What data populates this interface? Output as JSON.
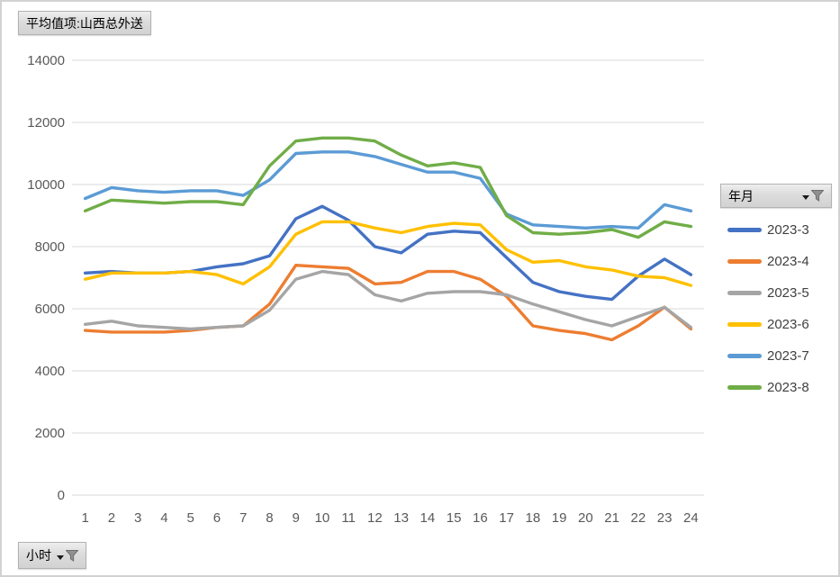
{
  "title_button": {
    "label": "平均值项:山西总外送"
  },
  "legend_button": {
    "label": "年月",
    "icons": [
      "dropdown-arrow",
      "filter-funnel"
    ]
  },
  "hour_button": {
    "label": "小时",
    "icons": [
      "dropdown-arrow",
      "filter-funnel"
    ]
  },
  "axis_style": {
    "tick_color": "#595959",
    "grid_color": "#d9d9d9"
  },
  "chart_data": {
    "type": "line",
    "title": "平均值项:山西总外送",
    "xlabel": "小时",
    "legend_title": "年月",
    "legend_position": "right",
    "grid": true,
    "x": [
      1,
      2,
      3,
      4,
      5,
      6,
      7,
      8,
      9,
      10,
      11,
      12,
      13,
      14,
      15,
      16,
      17,
      18,
      19,
      20,
      21,
      22,
      23,
      24
    ],
    "ylim": [
      0,
      14000
    ],
    "ytick_step": 2000,
    "yticks": [
      0,
      2000,
      4000,
      6000,
      8000,
      10000,
      12000,
      14000
    ],
    "series": [
      {
        "name": "2023-3",
        "color": "#4472C4",
        "values": [
          7150,
          7200,
          7150,
          7150,
          7200,
          7350,
          7450,
          7700,
          8900,
          9300,
          8850,
          8000,
          7800,
          8400,
          8500,
          8450,
          7650,
          6850,
          6550,
          6400,
          6300,
          7050,
          7600,
          7100
        ]
      },
      {
        "name": "2023-4",
        "color": "#ED7D31",
        "values": [
          5300,
          5250,
          5250,
          5250,
          5300,
          5400,
          5450,
          6150,
          7400,
          7350,
          7300,
          6800,
          6850,
          7200,
          7200,
          6950,
          6400,
          5450,
          5300,
          5200,
          5000,
          5450,
          6050,
          5350
        ]
      },
      {
        "name": "2023-5",
        "color": "#A5A5A5",
        "values": [
          5500,
          5600,
          5450,
          5400,
          5350,
          5400,
          5450,
          5950,
          6950,
          7200,
          7100,
          6450,
          6250,
          6500,
          6550,
          6550,
          6450,
          6150,
          5900,
          5650,
          5450,
          5750,
          6050,
          5400
        ]
      },
      {
        "name": "2023-6",
        "color": "#FFC000",
        "values": [
          6950,
          7150,
          7150,
          7150,
          7200,
          7100,
          6800,
          7350,
          8400,
          8800,
          8800,
          8600,
          8450,
          8650,
          8750,
          8700,
          7900,
          7500,
          7550,
          7350,
          7250,
          7050,
          7000,
          6750
        ]
      },
      {
        "name": "2023-7",
        "color": "#5B9BD5",
        "values": [
          9550,
          9900,
          9800,
          9750,
          9800,
          9800,
          9650,
          10150,
          11000,
          11050,
          11050,
          10900,
          10650,
          10400,
          10400,
          10200,
          9050,
          8700,
          8650,
          8600,
          8650,
          8600,
          9350,
          9150
        ]
      },
      {
        "name": "2023-8",
        "color": "#70AD47",
        "values": [
          9150,
          9500,
          9450,
          9400,
          9450,
          9450,
          9350,
          10600,
          11400,
          11500,
          11500,
          11400,
          10950,
          10600,
          10700,
          10550,
          9000,
          8450,
          8400,
          8450,
          8550,
          8300,
          8800,
          8650
        ]
      }
    ]
  }
}
